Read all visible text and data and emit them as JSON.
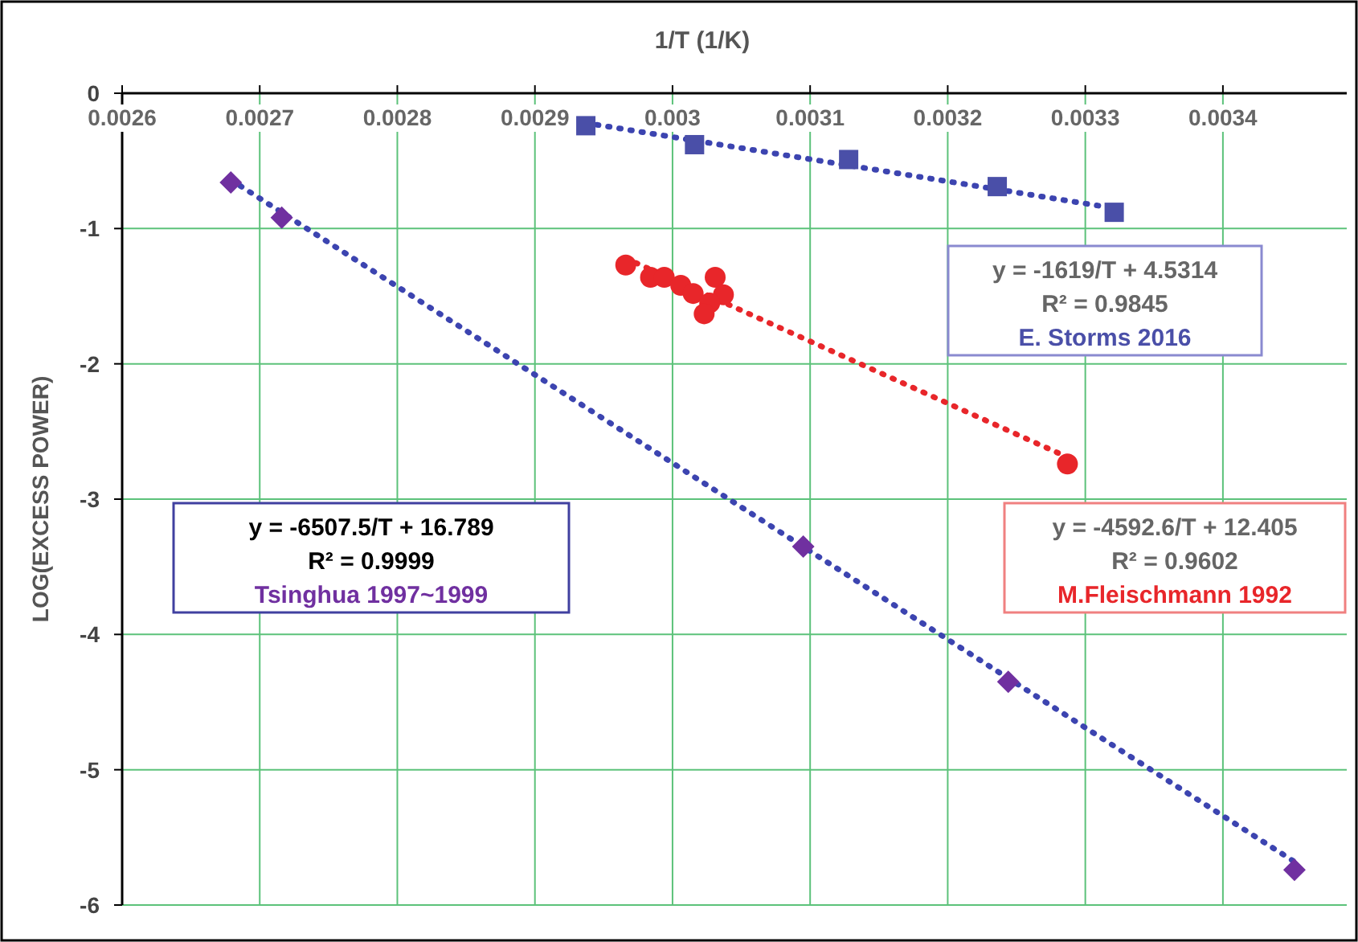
{
  "chart_data": {
    "type": "scatter",
    "xlabel": "1/T (1/K)",
    "ylabel": "LOG(EXCESS POWER)",
    "xlim": [
      0.0026,
      0.00349
    ],
    "xticks": [
      0.0026,
      0.0027,
      0.0028,
      0.0029,
      0.003,
      0.0031,
      0.0032,
      0.0033,
      0.0034
    ],
    "ylim": [
      -6,
      0
    ],
    "yticks": [
      -6,
      -5,
      -4,
      -3,
      -2,
      -1,
      0
    ],
    "grid": true,
    "series": [
      {
        "name": "E. Storms 2016",
        "type": "scatter",
        "marker": "square",
        "color": "#4a4fa8",
        "x": [
          0.002937,
          0.003016,
          0.003128,
          0.003236,
          0.003321
        ],
        "values": [
          -0.24,
          -0.38,
          -0.49,
          -0.69,
          -0.88
        ]
      },
      {
        "name": "M.Fleischmann 1992",
        "type": "scatter",
        "marker": "circle",
        "color": "#e8262a",
        "x": [
          0.002966,
          0.002984,
          0.002994,
          0.003006,
          0.003015,
          0.003031,
          0.003037,
          0.003027,
          0.003023,
          0.003287
        ],
        "values": [
          -1.27,
          -1.36,
          -1.36,
          -1.42,
          -1.48,
          -1.36,
          -1.49,
          -1.55,
          -1.63,
          -2.74
        ]
      },
      {
        "name": "Tsinghua 1997~1999",
        "type": "scatter",
        "marker": "diamond",
        "color": "#7030a0",
        "x": [
          0.002679,
          0.002716,
          0.003095,
          0.003244,
          0.003452
        ],
        "values": [
          -0.66,
          -0.92,
          -3.35,
          -4.35,
          -5.74
        ]
      },
      {
        "type": "line",
        "line_style": "dotted",
        "marker": "none",
        "color": "#3c44b0",
        "x": [
          0.002937,
          0.003321
        ],
        "values": [
          -0.22,
          -0.85
        ]
      },
      {
        "type": "line",
        "line_style": "dotted",
        "marker": "none",
        "color": "#e8262a",
        "x": [
          0.002966,
          0.003287
        ],
        "values": [
          -1.22,
          -2.69
        ]
      },
      {
        "type": "line",
        "line_style": "dotted",
        "marker": "none",
        "color": "#3c44b0",
        "x": [
          0.002679,
          0.003452
        ],
        "values": [
          -0.64,
          -5.68
        ]
      }
    ],
    "annotations": [
      "y = -1619/T + 4.5314",
      "R² = 0.9845",
      "y = -4592.6/T + 12.405",
      "R² = 0.9602",
      "y = -6507.5/T + 16.789",
      "R² = 0.9999"
    ]
  }
}
